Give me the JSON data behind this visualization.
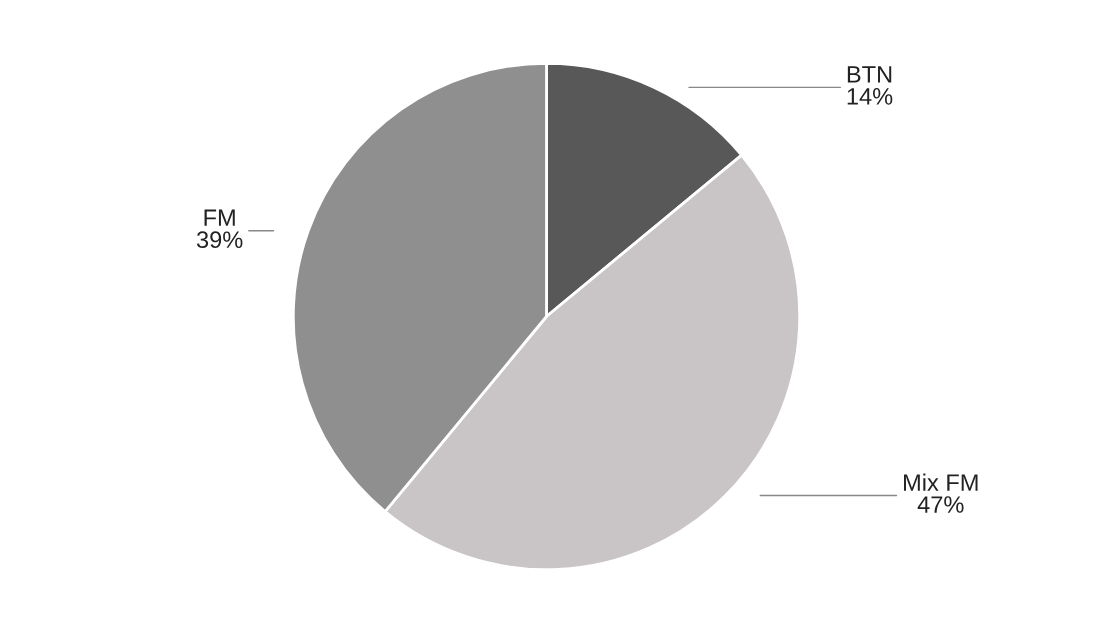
{
  "chart_data": {
    "type": "pie",
    "categories": [
      "BTN",
      "Mix FM",
      "FM"
    ],
    "values": [
      14,
      47,
      39
    ],
    "colors": [
      "#585858",
      "#c9c5c7",
      "#8f8f8f"
    ],
    "value_labels": [
      "14%",
      "47%",
      "39%"
    ],
    "legend": false
  }
}
